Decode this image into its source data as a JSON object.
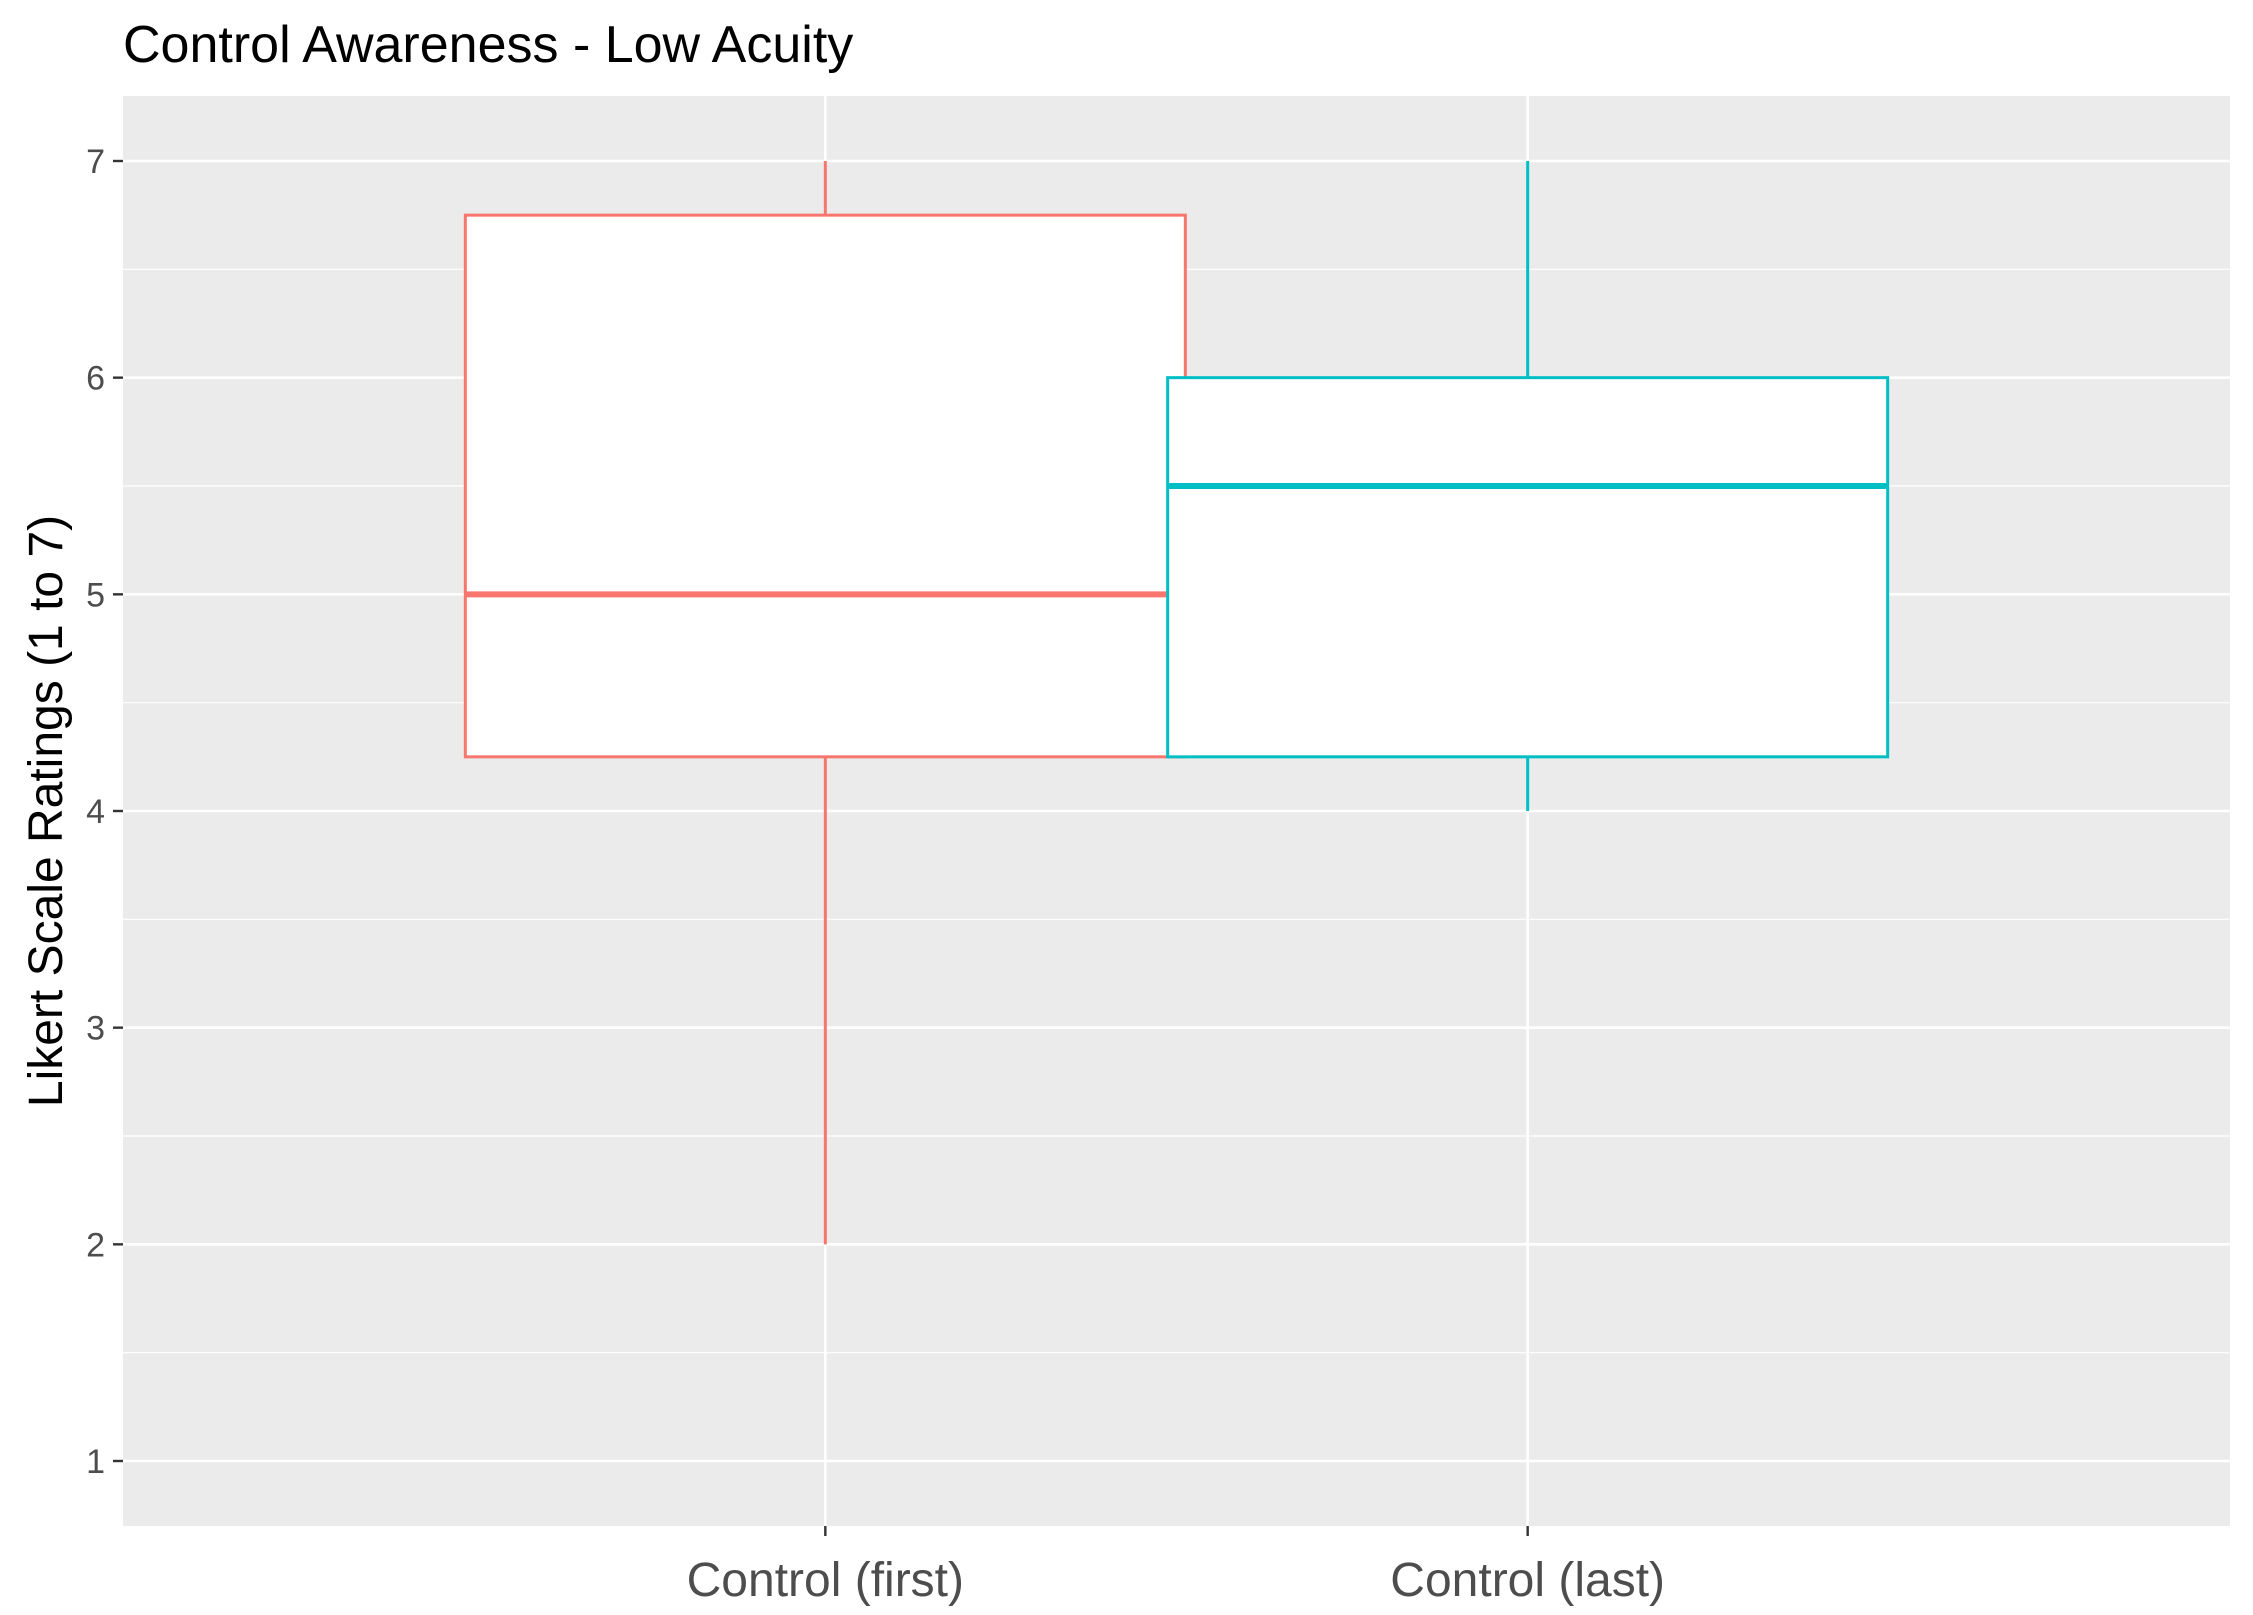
{
  "chart_data": {
    "type": "boxplot",
    "title": "Control Awareness - Low Acuity",
    "xlabel": "",
    "ylabel": "Likert Scale Ratings (1 to 7)",
    "ylim": [
      0.7,
      7.3
    ],
    "yticks": [
      1,
      2,
      3,
      4,
      5,
      6,
      7
    ],
    "grid": true,
    "legend": "none",
    "categories": [
      "Control (first)",
      "Control (last)"
    ],
    "boxes": [
      {
        "category": "Control (first)",
        "min": 2,
        "q1": 4.25,
        "median": 5,
        "q3": 6.75,
        "max": 7,
        "color": "#F8766D"
      },
      {
        "category": "Control (last)",
        "min": 4,
        "q1": 4.25,
        "median": 5.5,
        "q3": 6,
        "max": 7,
        "color": "#00BFC4"
      }
    ],
    "panel_background": "#EBEBEB",
    "grid_color": "#FFFFFF"
  }
}
